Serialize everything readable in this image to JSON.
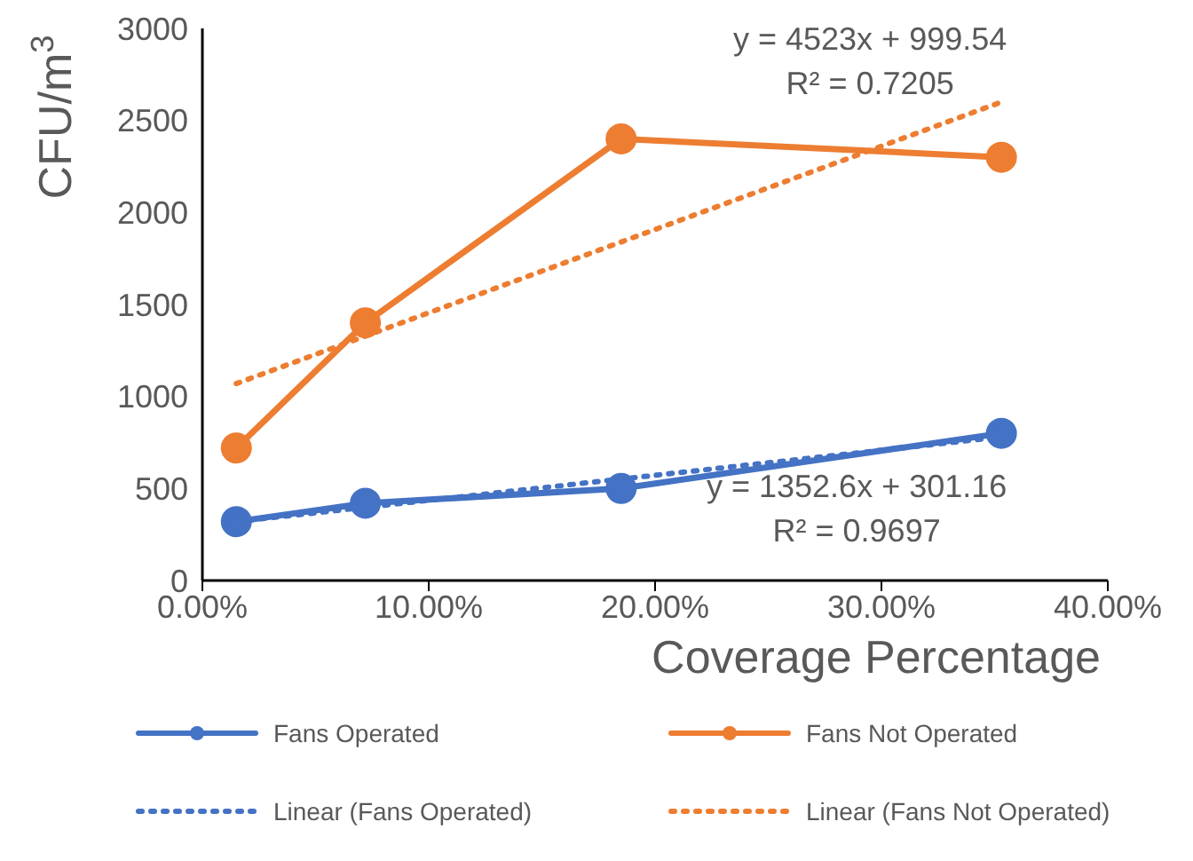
{
  "chart_data": {
    "type": "line",
    "xlabel": "Coverage Percentage",
    "ylabel": "CFU/m$^{3}$",
    "xlim": [
      0,
      0.4
    ],
    "xticks": [
      {
        "value": 0,
        "label": "0.00%"
      },
      {
        "value": 0.1,
        "label": "10.00%"
      },
      {
        "value": 0.2,
        "label": "20.00%"
      },
      {
        "value": 0.3,
        "label": "30.00%"
      },
      {
        "value": 0.4,
        "label": "40.00%"
      }
    ],
    "ylim": [
      0,
      3000
    ],
    "yticks": [
      0,
      500,
      1000,
      1500,
      2000,
      2500,
      3000
    ],
    "grid": false,
    "legend": "bottom",
    "series": [
      {
        "name": "Fans Operated",
        "color": "#4472c4",
        "x": [
          0.015,
          0.072,
          0.185,
          0.353
        ],
        "values": [
          320,
          420,
          500,
          800
        ],
        "marker": "circle",
        "line_style": "solid"
      },
      {
        "name": "Fans Not Operated",
        "color": "#ed7d31",
        "x": [
          0.015,
          0.072,
          0.185,
          0.353
        ],
        "values": [
          720,
          1400,
          2400,
          2300
        ],
        "marker": "circle",
        "line_style": "solid"
      },
      {
        "name": "Linear (Fans Operated)",
        "color": "#4472c4",
        "x": [
          0.015,
          0.353
        ],
        "values": [
          320,
          780
        ],
        "marker": "none",
        "line_style": "dotted"
      },
      {
        "name": "Linear (Fans Not Operated)",
        "color": "#ed7d31",
        "x": [
          0.015,
          0.353
        ],
        "values": [
          1070,
          2600
        ],
        "marker": "none",
        "line_style": "dotted"
      }
    ],
    "annotations": [
      "y = 4523x + 999.54\nR² = 0.7205",
      "y = 1352.6x + 301.16\nR² = 0.9697"
    ]
  }
}
